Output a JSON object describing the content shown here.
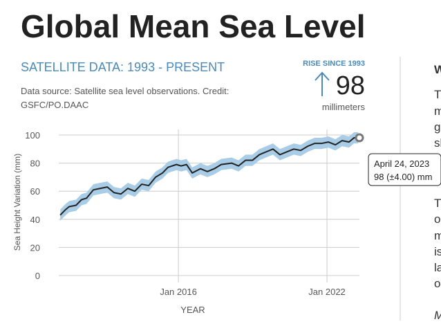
{
  "header": {
    "title": "Global Mean Sea Level"
  },
  "panel": {
    "subtitle": "SATELLITE DATA: 1993 - PRESENT",
    "source": [
      "Data source: Satellite sea level observations. Credit:",
      "GSFC/PO.DAAC"
    ],
    "rise_label": "RISE SINCE 1993",
    "rise_value": 98,
    "rise_unit": "millimeters"
  },
  "tooltip": {
    "date": "April 24, 2023",
    "text": "98 (±4.00) mm"
  },
  "sidebar": {
    "heading": "W",
    "paragraphs": [
      [
        "T",
        "m",
        "g",
        "sl"
      ],
      [
        "T",
        "o",
        "m",
        "is",
        "la",
        "o"
      ]
    ],
    "note": "M"
  },
  "chart_data": {
    "type": "line",
    "ylabel": "Sea Height Variation (mm)",
    "xlabel": "YEAR",
    "x": [
      2011.23,
      2011.45,
      2011.59,
      2011.87,
      2012.09,
      2012.29,
      2012.57,
      2012.85,
      2013.13,
      2013.4,
      2013.68,
      2013.96,
      2014.24,
      2014.52,
      2014.8,
      2015.08,
      2015.36,
      2015.58,
      2015.92,
      2016.11,
      2016.33,
      2016.56,
      2016.89,
      2017.17,
      2017.45,
      2017.73,
      2018.15,
      2018.43,
      2018.71,
      2018.99,
      2019.27,
      2019.54,
      2019.82,
      2020.1,
      2020.38,
      2020.66,
      2020.94,
      2021.22,
      2021.5,
      2021.78,
      2022.06,
      2022.34,
      2022.61,
      2022.89,
      2023.09,
      2023.26
    ],
    "series": [
      {
        "color": "#222222",
        "band_color": "#a9cde6",
        "uncertainty": 4,
        "values": [
          43,
          47,
          49,
          50,
          54,
          55,
          61,
          62,
          63,
          59,
          58,
          62,
          60,
          65,
          64,
          70,
          73,
          77,
          79,
          78,
          79,
          73,
          76,
          74,
          76,
          79,
          80,
          78,
          82,
          82,
          86,
          88,
          90,
          86,
          88,
          90,
          89,
          92,
          94,
          94,
          95,
          93,
          96,
          95,
          98,
          98
        ]
      }
    ],
    "xlim": [
      2011.17,
      2023.31
    ],
    "xticks": [
      {
        "value": 2016,
        "label": "Jan 2016"
      },
      {
        "value": 2022,
        "label": "Jan 2022"
      }
    ],
    "ylim": [
      0,
      100
    ],
    "yticks": [
      0,
      20,
      40,
      60,
      80,
      100
    ],
    "grid": true
  }
}
